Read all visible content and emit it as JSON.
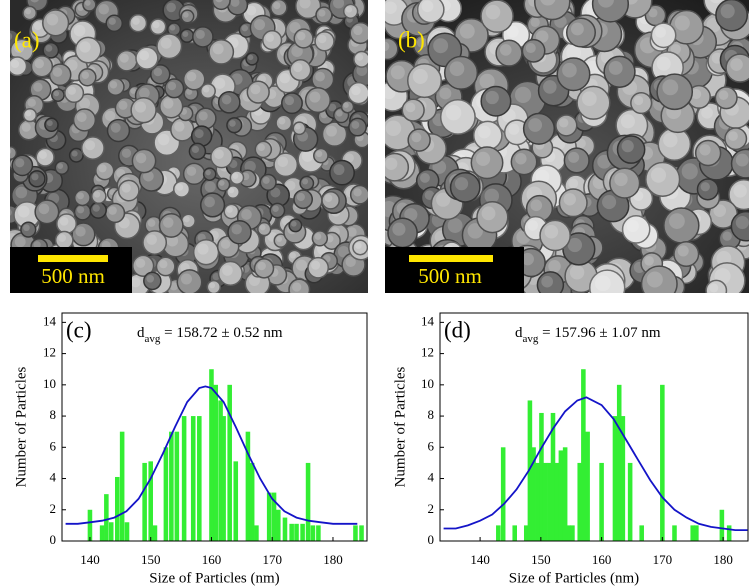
{
  "images": [
    {
      "label": "(a)",
      "scale_bar": "500 nm"
    },
    {
      "label": "(b)",
      "scale_bar": "500 nm"
    }
  ],
  "chart_data": [
    {
      "type": "bar",
      "panel_label": "(c)",
      "annotation": {
        "symbol": "d",
        "subscript": "avg",
        "text": " = 158.72 ± 0.52 nm"
      },
      "xlabel": "Size of Particles (nm)",
      "ylabel": "Number of Particles",
      "x": [
        140,
        142,
        142.7,
        143.5,
        144.5,
        145.3,
        146.1,
        149,
        150,
        150.7,
        152.5,
        153.4,
        154.3,
        155.5,
        157,
        158,
        160,
        160.7,
        161.5,
        162,
        163,
        164,
        166,
        166.7,
        167.4,
        169.5,
        170.3,
        171,
        172.1,
        173.2,
        174,
        175,
        175.9,
        176.7,
        177.6,
        183.7,
        184.7
      ],
      "values": [
        2,
        1,
        3,
        1.2,
        4.1,
        7,
        1.2,
        5,
        5.1,
        1,
        6,
        7,
        7,
        8,
        8,
        8,
        11,
        10,
        9,
        8,
        10,
        5.1,
        7,
        5,
        1,
        3.1,
        3.1,
        2,
        1.5,
        1.1,
        1.1,
        1.1,
        5,
        1,
        1,
        1,
        1
      ],
      "color": "#33ee33",
      "fit": {
        "color": "#1414c8",
        "x": [
          136,
          138,
          140,
          142,
          144,
          146,
          148,
          150,
          152,
          154,
          156,
          158,
          159,
          160,
          162,
          164,
          166,
          168,
          170,
          172,
          174,
          176,
          178,
          180,
          182,
          184
        ],
        "values": [
          1.1,
          1.1,
          1.2,
          1.3,
          1.5,
          1.9,
          2.7,
          4.0,
          5.6,
          7.3,
          8.9,
          9.8,
          9.9,
          9.8,
          8.9,
          7.3,
          5.6,
          4.0,
          2.7,
          1.9,
          1.5,
          1.3,
          1.2,
          1.1,
          1.1,
          1.1
        ]
      },
      "xlim": [
        135.4,
        185.6
      ],
      "ylim": [
        0,
        14.6
      ],
      "xticks": [
        140,
        150,
        160,
        170,
        180
      ],
      "yticks": [
        0,
        2,
        4,
        6,
        8,
        10,
        12,
        14
      ]
    },
    {
      "type": "bar",
      "panel_label": "(d)",
      "annotation": {
        "symbol": "d",
        "subscript": "avg",
        "text": " = 157.96 ± 1.07 nm"
      },
      "xlabel": "Size of Particles (nm)",
      "ylabel": "Number of Particles",
      "x": [
        143,
        143.8,
        145.7,
        147.6,
        148.2,
        148.8,
        149.5,
        150.1,
        150.7,
        151.4,
        152,
        152.7,
        153.3,
        154,
        154.6,
        155.2,
        156.4,
        157,
        157.7,
        160,
        162.2,
        162.9,
        163.5,
        164.7,
        166.6,
        170,
        172,
        175,
        175.6,
        179.8,
        181
      ],
      "values": [
        1,
        6,
        1,
        1,
        9,
        6,
        5,
        8.2,
        5,
        5,
        8.2,
        5,
        5.8,
        6,
        1,
        1,
        5,
        11,
        7,
        5,
        8,
        10,
        8,
        5,
        1,
        10,
        1,
        1,
        1,
        2,
        1
      ],
      "color": "#33ee33",
      "fit": {
        "color": "#1414c8",
        "x": [
          134,
          136,
          138,
          140,
          142,
          144,
          146,
          148,
          150,
          152,
          154,
          156,
          157.5,
          160,
          162,
          164,
          166,
          168,
          170,
          172,
          174,
          176,
          178,
          180,
          182,
          184
        ],
        "values": [
          0.8,
          0.8,
          1.0,
          1.3,
          1.7,
          2.4,
          3.3,
          4.5,
          5.9,
          7.2,
          8.3,
          9.0,
          9.2,
          8.7,
          7.8,
          6.5,
          5.2,
          3.9,
          2.8,
          2.0,
          1.5,
          1.1,
          0.9,
          0.8,
          0.7,
          0.7
        ]
      },
      "xlim": [
        133.4,
        184.1
      ],
      "ylim": [
        0,
        14.6
      ],
      "xticks": [
        140,
        150,
        160,
        170,
        180
      ],
      "yticks": [
        0,
        2,
        4,
        6,
        8,
        10,
        12,
        14
      ]
    }
  ]
}
